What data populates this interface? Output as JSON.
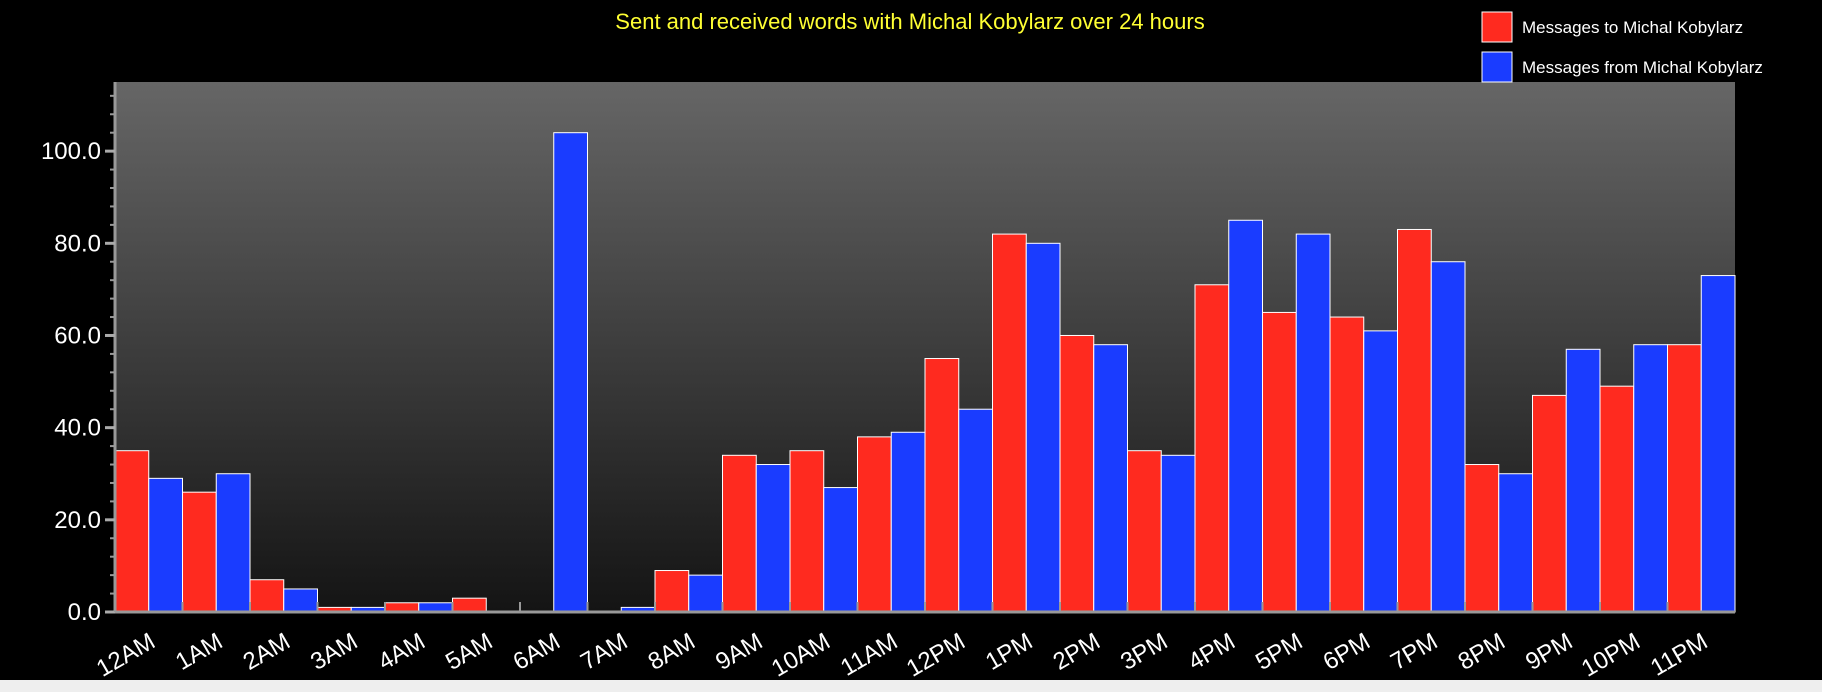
{
  "chart_data": {
    "type": "bar",
    "title": "Sent and received words with Michal Kobylarz over 24 hours",
    "xlabel": "",
    "ylabel": "",
    "categories": [
      "12AM",
      "1AM",
      "2AM",
      "3AM",
      "4AM",
      "5AM",
      "6AM",
      "7AM",
      "8AM",
      "9AM",
      "10AM",
      "11AM",
      "12PM",
      "1PM",
      "2PM",
      "3PM",
      "4PM",
      "5PM",
      "6PM",
      "7PM",
      "8PM",
      "9PM",
      "10PM",
      "11PM"
    ],
    "series": [
      {
        "name": "Messages to Michal Kobylarz",
        "color": "#ff2a1f",
        "values": [
          35,
          26,
          7,
          1,
          2,
          3,
          0,
          0,
          9,
          34,
          35,
          38,
          55,
          82,
          60,
          35,
          71,
          65,
          64,
          83,
          32,
          47,
          49,
          58
        ]
      },
      {
        "name": "Messages from Michal Kobylarz",
        "color": "#1a3cff",
        "values": [
          29,
          30,
          5,
          1,
          2,
          0,
          104,
          1,
          8,
          32,
          27,
          39,
          44,
          80,
          58,
          34,
          85,
          82,
          61,
          76,
          30,
          57,
          58,
          73
        ]
      }
    ],
    "ylim": [
      0,
      115
    ],
    "yticks": [
      "0.0",
      "20.0",
      "40.0",
      "60.0",
      "80.0",
      "100.0"
    ],
    "grid": false,
    "legend": "top-right"
  }
}
